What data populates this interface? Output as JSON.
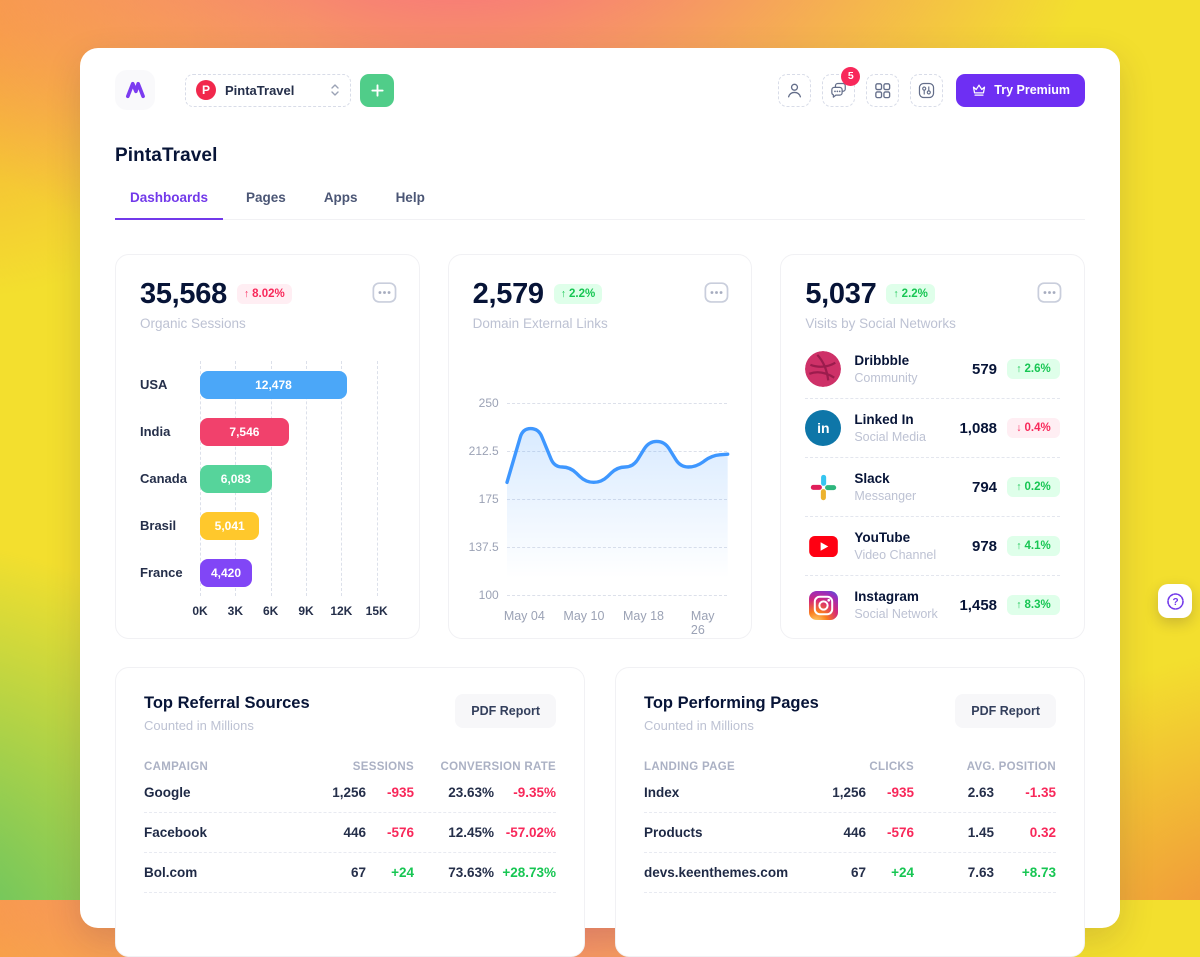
{
  "header": {
    "workspace_name": "PintaTravel",
    "workspace_initial": "P",
    "notification_count": "5",
    "try_premium_label": "Try Premium"
  },
  "page": {
    "title": "PintaTravel",
    "tabs": [
      {
        "label": "Dashboards",
        "active": true
      },
      {
        "label": "Pages",
        "active": false
      },
      {
        "label": "Apps",
        "active": false
      },
      {
        "label": "Help",
        "active": false
      }
    ]
  },
  "cards": {
    "organic_sessions": {
      "value": "35,568",
      "delta": "8.02%",
      "delta_arrow": "up",
      "delta_tone": "danger",
      "label": "Organic Sessions",
      "chart_data": {
        "type": "bar",
        "orientation": "horizontal",
        "categories": [
          "USA",
          "India",
          "Canada",
          "Brasil",
          "France"
        ],
        "values": [
          12478,
          7546,
          6083,
          5041,
          4420
        ],
        "value_labels": [
          "12,478",
          "7,546",
          "6,083",
          "5,041",
          "4,420"
        ],
        "bar_colors": [
          "#4BA7F8",
          "#F1416C",
          "#56D49B",
          "#FFC82C",
          "#8146F6"
        ],
        "xticks": [
          "0K",
          "3K",
          "6K",
          "9K",
          "12K",
          "15K"
        ],
        "xmax": 15000
      }
    },
    "external_links": {
      "value": "2,579",
      "delta": "2.2%",
      "delta_arrow": "up",
      "delta_tone": "success",
      "label": "Domain External Links",
      "chart_data": {
        "type": "area",
        "values": [
          188,
          230,
          230,
          200,
          200,
          188,
          188,
          200,
          200,
          220,
          220,
          200,
          200,
          209,
          210
        ],
        "ylim": [
          100,
          250
        ],
        "yticks": [
          "250",
          "212.5",
          "175",
          "137.5",
          "100"
        ],
        "xticks": [
          "May 04",
          "May 10",
          "May 18",
          "May 26"
        ],
        "xtick_positions": [
          0.08,
          0.35,
          0.62,
          0.89
        ],
        "line_color": "#3E97FF"
      }
    },
    "social_visits": {
      "value": "5,037",
      "delta": "2.2%",
      "delta_arrow": "up",
      "delta_tone": "success",
      "label": "Visits by Social Networks",
      "items": [
        {
          "icon": "dribbble-icon",
          "name": "Dribbble",
          "category": "Community",
          "value": "579",
          "delta": "2.6%",
          "delta_arrow": "up",
          "delta_tone": "success"
        },
        {
          "icon": "linkedin-icon",
          "name": "Linked In",
          "category": "Social Media",
          "value": "1,088",
          "delta": "0.4%",
          "delta_arrow": "down",
          "delta_tone": "danger"
        },
        {
          "icon": "slack-icon",
          "name": "Slack",
          "category": "Messanger",
          "value": "794",
          "delta": "0.2%",
          "delta_arrow": "up",
          "delta_tone": "success"
        },
        {
          "icon": "youtube-icon",
          "name": "YouTube",
          "category": "Video Channel",
          "value": "978",
          "delta": "4.1%",
          "delta_arrow": "up",
          "delta_tone": "success"
        },
        {
          "icon": "instagram-icon",
          "name": "Instagram",
          "category": "Social Network",
          "value": "1,458",
          "delta": "8.3%",
          "delta_arrow": "up",
          "delta_tone": "success"
        }
      ]
    }
  },
  "tables": [
    {
      "title": "Top Referral Sources",
      "subtitle": "Counted in Millions",
      "action_label": "PDF Report",
      "columns": [
        "CAMPAIGN",
        "SESSIONS",
        "CONVERSION RATE"
      ],
      "rows": [
        {
          "name": "Google",
          "cells": [
            {
              "value": "1,256",
              "delta": "-935",
              "tone": "danger"
            },
            {
              "value": "23.63%",
              "delta": "-9.35%",
              "tone": "danger"
            }
          ]
        },
        {
          "name": "Facebook",
          "cells": [
            {
              "value": "446",
              "delta": "-576",
              "tone": "danger"
            },
            {
              "value": "12.45%",
              "delta": "-57.02%",
              "tone": "danger"
            }
          ]
        },
        {
          "name": "Bol.com",
          "cells": [
            {
              "value": "67",
              "delta": "+24",
              "tone": "success"
            },
            {
              "value": "73.63%",
              "delta": "+28.73%",
              "tone": "success"
            }
          ]
        }
      ]
    },
    {
      "title": "Top Performing Pages",
      "subtitle": "Counted in Millions",
      "action_label": "PDF Report",
      "columns": [
        "LANDING PAGE",
        "CLICKS",
        "AVG. POSITION"
      ],
      "rows": [
        {
          "name": "Index",
          "cells": [
            {
              "value": "1,256",
              "delta": "-935",
              "tone": "danger"
            },
            {
              "value": "2.63",
              "delta": "-1.35",
              "tone": "danger"
            }
          ]
        },
        {
          "name": "Products",
          "cells": [
            {
              "value": "446",
              "delta": "-576",
              "tone": "danger"
            },
            {
              "value": "1.45",
              "delta": "0.32",
              "tone": "danger"
            }
          ]
        },
        {
          "name": "devs.keenthemes.com",
          "cells": [
            {
              "value": "67",
              "delta": "+24",
              "tone": "success"
            },
            {
              "value": "7.63",
              "delta": "+8.73",
              "tone": "success"
            }
          ]
        }
      ]
    }
  ],
  "colors": {
    "accent_purple": "#7239EA",
    "success": "#17C653",
    "danger": "#F8285A",
    "line_blue": "#3E97FF"
  }
}
